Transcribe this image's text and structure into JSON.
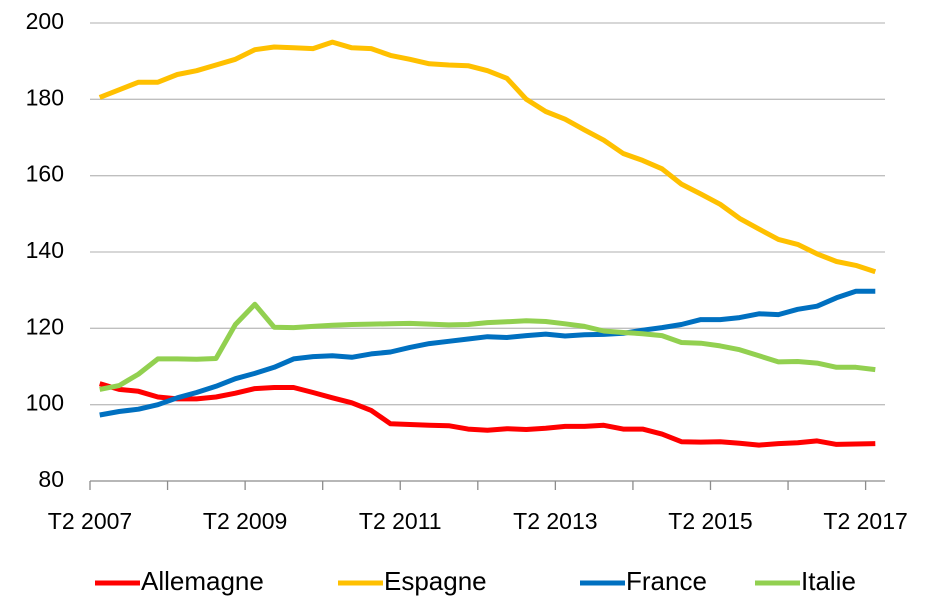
{
  "chart_data": {
    "type": "line",
    "categories": [
      "T2 2007",
      null,
      null,
      null,
      null,
      null,
      null,
      null,
      "T2 2009",
      null,
      null,
      null,
      null,
      null,
      null,
      null,
      "T2 2011",
      null,
      null,
      null,
      null,
      null,
      null,
      null,
      "T2 2013",
      null,
      null,
      null,
      null,
      null,
      null,
      null,
      "T2 2015",
      null,
      null,
      null,
      null,
      null,
      null,
      null,
      "T2 2017"
    ],
    "series": [
      {
        "name": "Allemagne",
        "color": "#ff0000",
        "values": [
          105.5,
          104,
          103.5,
          102,
          101.5,
          101.5,
          102,
          103,
          104.2,
          104.5,
          104.5,
          103.2,
          101.8,
          100.5,
          98.5,
          95,
          94.8,
          94.6,
          94.5,
          93.6,
          93.3,
          93.7,
          93.5,
          93.8,
          94.3,
          94.3,
          94.6,
          93.6,
          93.6,
          92.3,
          90.3,
          90.2,
          90.3,
          89.9,
          89.4,
          89.8,
          90,
          90.5,
          89.6,
          89.7,
          89.8
        ]
      },
      {
        "name": "Espagne",
        "color": "#ffc000",
        "values": [
          180.5,
          182.5,
          184.5,
          184.5,
          186.5,
          187.5,
          189,
          190.5,
          193,
          193.7,
          193.5,
          193.3,
          195,
          193.5,
          193.3,
          191.5,
          190.5,
          189.3,
          189,
          188.8,
          187.5,
          185.5,
          180,
          176.8,
          174.8,
          172,
          169.3,
          165.8,
          164,
          161.8,
          157.8,
          155.2,
          152.5,
          148.8,
          146,
          143.3,
          142,
          139.5,
          137.5,
          136.5,
          134.8
        ]
      },
      {
        "name": "France",
        "color": "#0070c0",
        "values": [
          97.3,
          98.2,
          98.8,
          100,
          101.8,
          103.2,
          104.8,
          106.8,
          108.2,
          109.8,
          112,
          112.6,
          112.8,
          112.4,
          113.3,
          113.8,
          115,
          116,
          116.6,
          117.2,
          117.8,
          117.6,
          118.1,
          118.5,
          118,
          118.3,
          118.4,
          118.7,
          119.5,
          120.2,
          121,
          122.3,
          122.3,
          122.8,
          123.8,
          123.6,
          125,
          125.8,
          128,
          129.7,
          129.7
        ]
      },
      {
        "name": "Italie",
        "color": "#92d050",
        "values": [
          104,
          105,
          108,
          112,
          112,
          111.9,
          112.1,
          121,
          126.3,
          120.3,
          120.2,
          120.5,
          120.8,
          121,
          121.1,
          121.2,
          121.3,
          121.1,
          120.9,
          121,
          121.5,
          121.7,
          122,
          121.8,
          121.2,
          120.5,
          119.3,
          118.9,
          118.6,
          118.1,
          116.3,
          116.1,
          115.4,
          114.4,
          112.8,
          111.2,
          111.3,
          110.9,
          109.8,
          109.8,
          109.2
        ]
      }
    ],
    "ylim": [
      80,
      200
    ],
    "yticks": [
      80,
      100,
      120,
      140,
      160,
      180,
      200
    ],
    "grid": true,
    "legend": "bottom"
  }
}
